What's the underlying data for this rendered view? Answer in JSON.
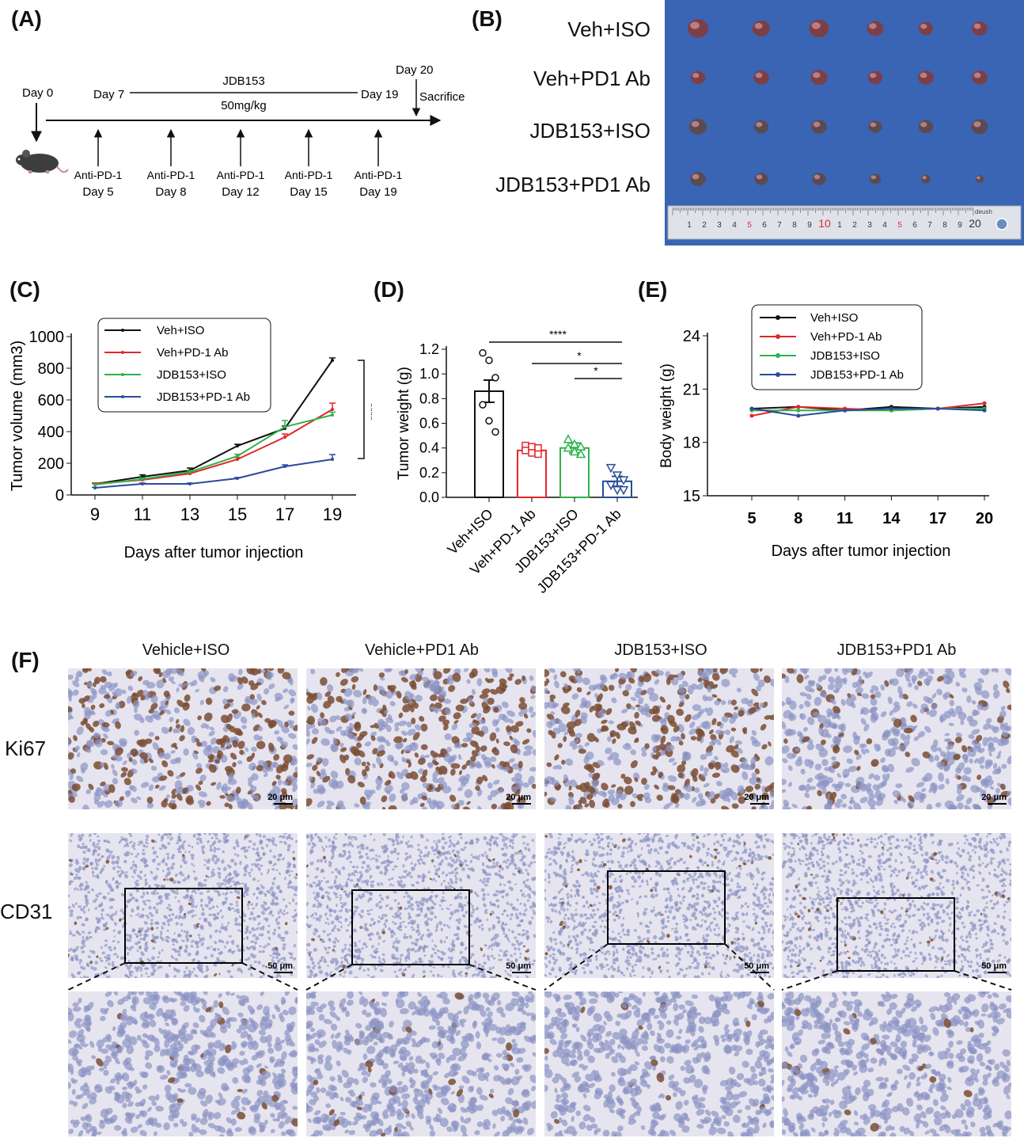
{
  "panels": {
    "A": "(A)",
    "B": "(B)",
    "C": "(C)",
    "D": "(D)",
    "E": "(E)",
    "F": "(F)"
  },
  "timeline": {
    "day0": "Day 0",
    "day7": "Day 7",
    "drug": "JDB153",
    "dose": "50mg/kg",
    "day19": "Day 19",
    "day20": "Day 20",
    "sacrifice": "Sacrifice",
    "injections": [
      {
        "label": "Anti-PD-1",
        "day": "Day 5"
      },
      {
        "label": "Anti-PD-1",
        "day": "Day 8"
      },
      {
        "label": "Anti-PD-1",
        "day": "Day 12"
      },
      {
        "label": "Anti-PD-1",
        "day": "Day 15"
      },
      {
        "label": "Anti-PD-1",
        "day": "Day 19"
      }
    ]
  },
  "photo": {
    "rows": [
      "Veh+ISO",
      "Veh+PD1 Ab",
      "JDB153+ISO",
      "JDB153+PD1 Ab"
    ],
    "ruler": [
      "1",
      "2",
      "3",
      "4",
      "5",
      "6",
      "7",
      "8",
      "9",
      "10",
      "1",
      "2",
      "3",
      "4",
      "5",
      "6",
      "7",
      "8",
      "9",
      "20"
    ],
    "ruler_brand": "deush",
    "bg_color": "#3a64b4",
    "tumor_sizes": [
      [
        1.0,
        0.85,
        0.95,
        0.8,
        0.7,
        0.75
      ],
      [
        0.7,
        0.75,
        0.8,
        0.7,
        0.75,
        0.75
      ],
      [
        0.85,
        0.7,
        0.75,
        0.65,
        0.7,
        0.8
      ],
      [
        0.75,
        0.65,
        0.65,
        0.55,
        0.45,
        0.4
      ]
    ]
  },
  "colors": {
    "veh_iso": "#111111",
    "veh_pd1": "#e3262a",
    "jdb_iso": "#2cb34a",
    "jdb_pd1": "#2a4b9b"
  },
  "chart_data": [
    {
      "id": "C",
      "type": "line",
      "ylabel": "Tumor volume (mm3)",
      "xlabel": "Days after tumor injection",
      "x": [
        9,
        11,
        13,
        15,
        17,
        19
      ],
      "xlim": [
        8,
        20
      ],
      "ylim": [
        0,
        1000
      ],
      "yticks": [
        0,
        200,
        400,
        600,
        800,
        1000
      ],
      "legend": "top-left",
      "series": [
        {
          "name": "Veh+ISO",
          "values": [
            70,
            115,
            155,
            310,
            420,
            850
          ],
          "err": [
            5,
            12,
            15,
            10,
            15,
            15
          ]
        },
        {
          "name": "Veh+PD-1 Ab",
          "values": [
            70,
            95,
            135,
            225,
            365,
            540
          ],
          "err": [
            5,
            8,
            10,
            12,
            20,
            40
          ]
        },
        {
          "name": "JDB153+ISO",
          "values": [
            65,
            100,
            145,
            245,
            430,
            505
          ],
          "err": [
            5,
            8,
            10,
            12,
            40,
            18
          ]
        },
        {
          "name": "JDB153+PD-1 Ab",
          "values": [
            45,
            70,
            70,
            105,
            180,
            225
          ],
          "err": [
            3,
            5,
            5,
            5,
            10,
            30
          ]
        }
      ],
      "annotation": "****"
    },
    {
      "id": "D",
      "type": "bar",
      "ylabel": "Tumor weight (g)",
      "categories": [
        "Veh+ISO",
        "Veh+PD-1 Ab",
        "JDB153+ISO",
        "JDB153+PD-1 Ab"
      ],
      "values": [
        0.86,
        0.38,
        0.4,
        0.13
      ],
      "err": [
        0.09,
        0.02,
        0.04,
        0.04
      ],
      "points": [
        [
          1.17,
          1.11,
          0.97,
          0.75,
          0.62,
          0.53
        ],
        [
          0.42,
          0.41,
          0.4,
          0.38,
          0.36,
          0.35
        ],
        [
          0.47,
          0.43,
          0.41,
          0.4,
          0.37,
          0.35
        ],
        [
          0.24,
          0.18,
          0.14,
          0.1,
          0.06,
          0.06
        ]
      ],
      "markers": [
        "circle",
        "square",
        "triangle-up",
        "triangle-down"
      ],
      "ylim": [
        0,
        1.2
      ],
      "yticks": [
        0.0,
        0.2,
        0.4,
        0.6,
        0.8,
        1.0,
        1.2
      ],
      "significance": [
        {
          "from": 0,
          "to": 3,
          "label": "****"
        },
        {
          "from": 1,
          "to": 3,
          "label": "*"
        },
        {
          "from": 2,
          "to": 3,
          "label": "*"
        }
      ]
    },
    {
      "id": "E",
      "type": "line",
      "ylabel": "Body weight (g)",
      "xlabel": "Days after tumor injection",
      "x": [
        5,
        8,
        11,
        14,
        17,
        20
      ],
      "xlim": [
        5,
        20
      ],
      "ylim": [
        15,
        24
      ],
      "yticks": [
        15,
        18,
        21,
        24
      ],
      "legend": "top",
      "series": [
        {
          "name": "Veh+ISO",
          "values": [
            19.9,
            20.0,
            19.8,
            20.0,
            19.9,
            20.0
          ]
        },
        {
          "name": "Veh+PD-1 Ab",
          "values": [
            19.5,
            20.0,
            19.9,
            19.8,
            19.9,
            20.2
          ]
        },
        {
          "name": "JDB153+ISO",
          "values": [
            19.8,
            19.8,
            19.8,
            19.8,
            19.9,
            19.9
          ]
        },
        {
          "name": "JDB153+PD-1 Ab",
          "values": [
            19.9,
            19.5,
            19.8,
            19.9,
            19.9,
            19.8
          ]
        }
      ]
    }
  ],
  "micrographs": {
    "columns": [
      "Vehicle+ISO",
      "Vehicle+PD1 Ab",
      "JDB153+ISO",
      "JDB153+PD1 Ab"
    ],
    "rows": [
      "Ki67",
      "CD31"
    ],
    "scale_ki67": "20 μm",
    "scale_cd31": "50 μm"
  }
}
